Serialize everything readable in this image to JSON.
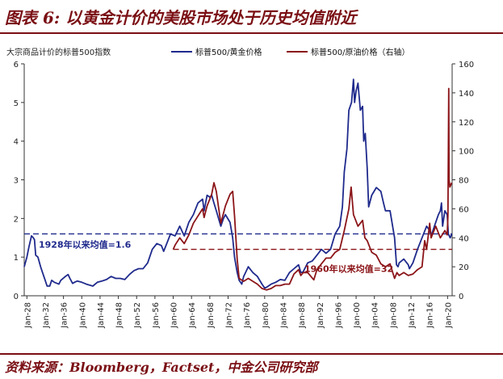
{
  "figure_title": "图表 6: 以黄金计价的美股市场处于历史均值附近",
  "source": "资料来源：Bloomberg，Factset，中金公司研究部",
  "chart_data": {
    "type": "line",
    "subtitle": "大宗商品计价的标普500指数",
    "x_range": [
      "1927-06",
      "2021-01"
    ],
    "x_ticks": [
      "Jan-28",
      "Jan-32",
      "Jan-36",
      "Jan-40",
      "Jan-44",
      "Jan-48",
      "Jan-52",
      "Jan-56",
      "Jan-60",
      "Jan-64",
      "Jan-68",
      "Jan-72",
      "Jan-76",
      "Jan-80",
      "Jan-84",
      "Jan-88",
      "Jan-92",
      "Jan-96",
      "Jan-00",
      "Jan-04",
      "Jan-08",
      "Jan-12",
      "Jan-16",
      "Jan-20"
    ],
    "y_left": {
      "min": 0,
      "max": 6,
      "ticks": [
        0,
        1,
        2,
        3,
        4,
        5,
        6
      ]
    },
    "y_right": {
      "min": 0,
      "max": 160,
      "ticks": [
        0,
        20,
        40,
        60,
        80,
        100,
        120,
        140,
        160
      ]
    },
    "grid": false,
    "legend_position": "top",
    "series": [
      {
        "name": "标普500/黄金价格",
        "axis": "left",
        "color": "#1f2a8c",
        "points": [
          [
            "1927-06",
            0.75
          ],
          [
            "1928-01",
            1.0
          ],
          [
            "1928-06",
            1.25
          ],
          [
            "1929-01",
            1.55
          ],
          [
            "1929-06",
            1.5
          ],
          [
            "1929-09",
            1.45
          ],
          [
            "1929-12",
            1.05
          ],
          [
            "1930-06",
            1.0
          ],
          [
            "1931-01",
            0.75
          ],
          [
            "1931-06",
            0.6
          ],
          [
            "1932-01",
            0.4
          ],
          [
            "1932-06",
            0.25
          ],
          [
            "1933-01",
            0.25
          ],
          [
            "1933-06",
            0.4
          ],
          [
            "1934-01",
            0.35
          ],
          [
            "1935-01",
            0.3
          ],
          [
            "1935-06",
            0.4
          ],
          [
            "1936-06",
            0.5
          ],
          [
            "1937-01",
            0.55
          ],
          [
            "1937-06",
            0.45
          ],
          [
            "1938-01",
            0.32
          ],
          [
            "1938-06",
            0.35
          ],
          [
            "1939-01",
            0.38
          ],
          [
            "1940-01",
            0.35
          ],
          [
            "1941-01",
            0.3
          ],
          [
            "1942-06",
            0.25
          ],
          [
            "1943-06",
            0.35
          ],
          [
            "1944-06",
            0.38
          ],
          [
            "1945-06",
            0.42
          ],
          [
            "1946-06",
            0.5
          ],
          [
            "1947-06",
            0.45
          ],
          [
            "1948-06",
            0.45
          ],
          [
            "1949-06",
            0.42
          ],
          [
            "1950-06",
            0.55
          ],
          [
            "1951-06",
            0.65
          ],
          [
            "1952-06",
            0.7
          ],
          [
            "1953-06",
            0.7
          ],
          [
            "1954-06",
            0.85
          ],
          [
            "1955-06",
            1.2
          ],
          [
            "1956-06",
            1.35
          ],
          [
            "1957-06",
            1.3
          ],
          [
            "1957-12",
            1.15
          ],
          [
            "1958-06",
            1.3
          ],
          [
            "1959-06",
            1.6
          ],
          [
            "1960-06",
            1.55
          ],
          [
            "1961-06",
            1.8
          ],
          [
            "1962-06",
            1.55
          ],
          [
            "1963-06",
            1.9
          ],
          [
            "1964-06",
            2.1
          ],
          [
            "1965-06",
            2.4
          ],
          [
            "1966-06",
            2.5
          ],
          [
            "1966-10",
            2.2
          ],
          [
            "1967-06",
            2.6
          ],
          [
            "1968-01",
            2.55
          ],
          [
            "1968-06",
            2.6
          ],
          [
            "1968-12",
            2.4
          ],
          [
            "1969-06",
            2.2
          ],
          [
            "1970-06",
            1.8
          ],
          [
            "1971-01",
            2.0
          ],
          [
            "1971-06",
            2.1
          ],
          [
            "1972-06",
            1.9
          ],
          [
            "1973-01",
            1.5
          ],
          [
            "1973-06",
            1.0
          ],
          [
            "1974-01",
            0.6
          ],
          [
            "1974-06",
            0.4
          ],
          [
            "1975-01",
            0.3
          ],
          [
            "1975-06",
            0.5
          ],
          [
            "1976-06",
            0.75
          ],
          [
            "1977-06",
            0.6
          ],
          [
            "1978-06",
            0.5
          ],
          [
            "1979-06",
            0.3
          ],
          [
            "1980-01",
            0.2
          ],
          [
            "1980-06",
            0.22
          ],
          [
            "1981-06",
            0.3
          ],
          [
            "1982-06",
            0.35
          ],
          [
            "1983-06",
            0.42
          ],
          [
            "1984-06",
            0.4
          ],
          [
            "1985-06",
            0.6
          ],
          [
            "1986-06",
            0.7
          ],
          [
            "1987-06",
            0.8
          ],
          [
            "1987-12",
            0.6
          ],
          [
            "1988-06",
            0.62
          ],
          [
            "1989-06",
            0.85
          ],
          [
            "1990-06",
            0.9
          ],
          [
            "1991-06",
            1.05
          ],
          [
            "1992-06",
            1.2
          ],
          [
            "1993-06",
            1.1
          ],
          [
            "1994-06",
            1.2
          ],
          [
            "1995-06",
            1.6
          ],
          [
            "1996-06",
            1.8
          ],
          [
            "1997-01",
            2.3
          ],
          [
            "1997-06",
            3.2
          ],
          [
            "1998-01",
            3.8
          ],
          [
            "1998-06",
            4.8
          ],
          [
            "1999-01",
            5.0
          ],
          [
            "1999-06",
            5.6
          ],
          [
            "1999-09",
            5.0
          ],
          [
            "2000-01",
            5.3
          ],
          [
            "2000-06",
            5.5
          ],
          [
            "2000-12",
            4.8
          ],
          [
            "2001-06",
            4.9
          ],
          [
            "2001-09",
            4.0
          ],
          [
            "2002-01",
            4.2
          ],
          [
            "2002-06",
            3.3
          ],
          [
            "2002-10",
            2.3
          ],
          [
            "2003-06",
            2.6
          ],
          [
            "2004-06",
            2.8
          ],
          [
            "2005-06",
            2.7
          ],
          [
            "2006-01",
            2.4
          ],
          [
            "2006-06",
            2.2
          ],
          [
            "2007-06",
            2.2
          ],
          [
            "2008-06",
            1.5
          ],
          [
            "2008-11",
            0.8
          ],
          [
            "2009-03",
            0.75
          ],
          [
            "2009-06",
            0.85
          ],
          [
            "2010-06",
            0.95
          ],
          [
            "2011-06",
            0.8
          ],
          [
            "2011-09",
            0.7
          ],
          [
            "2012-06",
            0.85
          ],
          [
            "2013-06",
            1.2
          ],
          [
            "2014-06",
            1.5
          ],
          [
            "2015-06",
            1.8
          ],
          [
            "2016-01",
            1.7
          ],
          [
            "2016-06",
            1.55
          ],
          [
            "2017-06",
            1.9
          ],
          [
            "2018-01",
            2.1
          ],
          [
            "2018-06",
            2.2
          ],
          [
            "2018-09",
            2.4
          ],
          [
            "2018-12",
            1.8
          ],
          [
            "2019-06",
            2.2
          ],
          [
            "2019-12",
            2.1
          ],
          [
            "2020-03",
            1.6
          ],
          [
            "2020-08",
            1.5
          ],
          [
            "2020-12",
            1.6
          ]
        ]
      },
      {
        "name": "标普500/原油价格（右轴）",
        "axis": "right",
        "color": "#8b1418",
        "points": [
          [
            "1960-01",
            32
          ],
          [
            "1960-06",
            35
          ],
          [
            "1961-06",
            40
          ],
          [
            "1962-06",
            36
          ],
          [
            "1963-06",
            42
          ],
          [
            "1964-06",
            50
          ],
          [
            "1965-06",
            55
          ],
          [
            "1966-06",
            60
          ],
          [
            "1966-10",
            54
          ],
          [
            "1967-06",
            62
          ],
          [
            "1968-06",
            70
          ],
          [
            "1968-12",
            78
          ],
          [
            "1969-06",
            72
          ],
          [
            "1970-06",
            50
          ],
          [
            "1971-06",
            62
          ],
          [
            "1972-06",
            70
          ],
          [
            "1973-01",
            72
          ],
          [
            "1973-06",
            55
          ],
          [
            "1974-01",
            25
          ],
          [
            "1974-06",
            12
          ],
          [
            "1975-06",
            10
          ],
          [
            "1976-06",
            12
          ],
          [
            "1977-06",
            10
          ],
          [
            "1978-06",
            8
          ],
          [
            "1979-06",
            5
          ],
          [
            "1980-06",
            4
          ],
          [
            "1981-06",
            5
          ],
          [
            "1982-06",
            7
          ],
          [
            "1983-06",
            7
          ],
          [
            "1984-06",
            8
          ],
          [
            "1985-06",
            8
          ],
          [
            "1986-06",
            15
          ],
          [
            "1987-06",
            18
          ],
          [
            "1987-12",
            14
          ],
          [
            "1988-06",
            16
          ],
          [
            "1989-06",
            16
          ],
          [
            "1990-10",
            11
          ],
          [
            "1991-06",
            18
          ],
          [
            "1992-06",
            22
          ],
          [
            "1993-06",
            26
          ],
          [
            "1994-06",
            26
          ],
          [
            "1995-06",
            30
          ],
          [
            "1996-06",
            32
          ],
          [
            "1997-06",
            45
          ],
          [
            "1998-06",
            60
          ],
          [
            "1998-12",
            75
          ],
          [
            "1999-06",
            56
          ],
          [
            "2000-06",
            48
          ],
          [
            "2001-06",
            52
          ],
          [
            "2001-12",
            40
          ],
          [
            "2002-06",
            38
          ],
          [
            "2003-06",
            30
          ],
          [
            "2004-06",
            28
          ],
          [
            "2005-06",
            22
          ],
          [
            "2006-06",
            20
          ],
          [
            "2007-06",
            22
          ],
          [
            "2008-06",
            12
          ],
          [
            "2008-12",
            16
          ],
          [
            "2009-06",
            14
          ],
          [
            "2010-06",
            16
          ],
          [
            "2011-06",
            14
          ],
          [
            "2012-06",
            15
          ],
          [
            "2013-06",
            18
          ],
          [
            "2014-06",
            20
          ],
          [
            "2015-01",
            38
          ],
          [
            "2015-06",
            32
          ],
          [
            "2016-02",
            50
          ],
          [
            "2016-06",
            40
          ],
          [
            "2017-06",
            48
          ],
          [
            "2018-06",
            40
          ],
          [
            "2019-06",
            45
          ],
          [
            "2019-12",
            42
          ],
          [
            "2020-02",
            55
          ],
          [
            "2020-04",
            143
          ],
          [
            "2020-05",
            80
          ],
          [
            "2020-07",
            75
          ],
          [
            "2020-12",
            78
          ]
        ]
      }
    ],
    "reference_lines": [
      {
        "axis": "left",
        "value": 1.6,
        "label": "1928年以来均值=1.6",
        "color": "#1f2a8c",
        "from": "1927-06"
      },
      {
        "axis": "right",
        "value": 32,
        "label": "1960年以来均值=32",
        "color": "#8b1418",
        "from": "1960-01"
      }
    ]
  }
}
